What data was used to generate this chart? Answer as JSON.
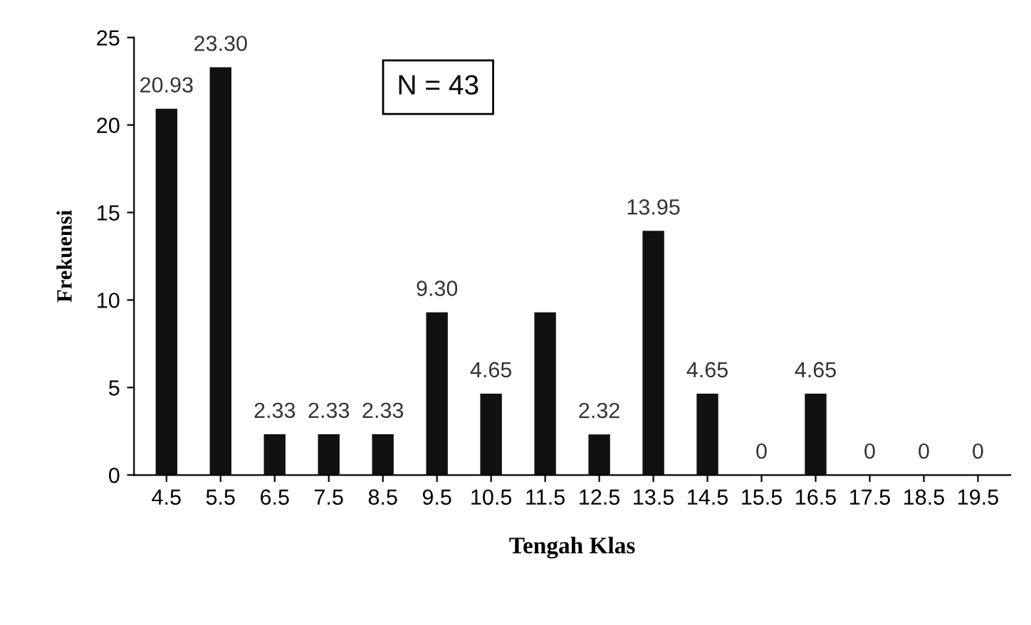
{
  "chart_data": {
    "type": "bar",
    "xlabel": "Tengah Klas",
    "ylabel": "Frekuensi",
    "categories": [
      "4.5",
      "5.5",
      "6.5",
      "7.5",
      "8.5",
      "9.5",
      "10.5",
      "11.5",
      "12.5",
      "13.5",
      "14.5",
      "15.5",
      "16.5",
      "17.5",
      "18.5",
      "19.5"
    ],
    "values": [
      20.93,
      23.3,
      2.33,
      2.33,
      2.33,
      9.3,
      4.65,
      9.3,
      2.32,
      13.95,
      4.65,
      0,
      4.65,
      0,
      0,
      0
    ],
    "value_labels": [
      "20.93",
      "23.30",
      "2.33",
      "2.33",
      "2.33",
      "9.30",
      "4.65",
      null,
      "2.32",
      "13.95",
      "4.65",
      "0",
      "4.65",
      "0",
      "0",
      "0"
    ],
    "color": "#111111",
    "ylim": [
      0,
      25
    ],
    "yticks": [
      0,
      5,
      10,
      15,
      20,
      25
    ],
    "grid": false,
    "annotations": [
      "N = 43"
    ]
  }
}
